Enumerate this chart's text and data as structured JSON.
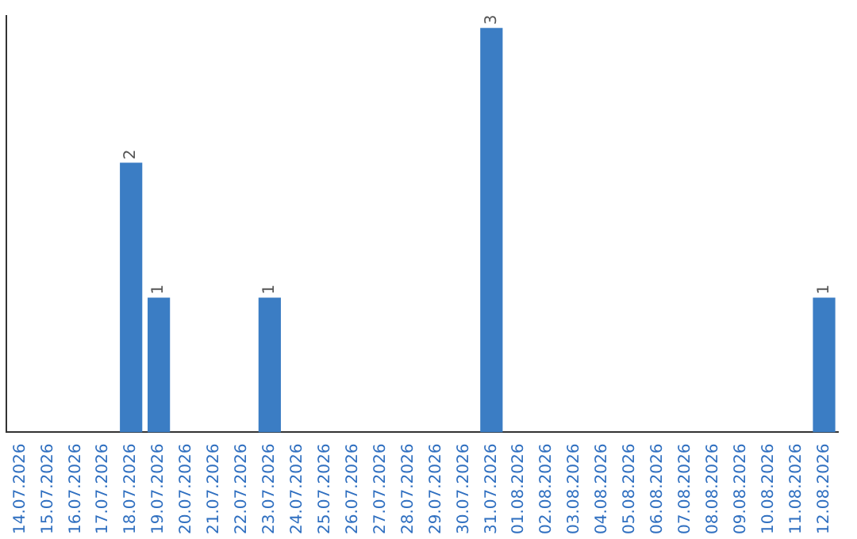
{
  "chart_data": {
    "type": "bar",
    "color": "#3b7dc4",
    "categories": [
      "14.07.2026",
      "15.07.2026",
      "16.07.2026",
      "17.07.2026",
      "18.07.2026",
      "19.07.2026",
      "20.07.2026",
      "21.07.2026",
      "22.07.2026",
      "23.07.2026",
      "24.07.2026",
      "25.07.2026",
      "26.07.2026",
      "27.07.2026",
      "28.07.2026",
      "29.07.2026",
      "30.07.2026",
      "31.07.2026",
      "01.08.2026",
      "02.08.2026",
      "03.08.2026",
      "04.08.2026",
      "05.08.2026",
      "06.08.2026",
      "07.08.2026",
      "08.08.2026",
      "09.08.2026",
      "10.08.2026",
      "11.08.2026",
      "12.08.2026"
    ],
    "values": [
      0,
      0,
      0,
      0,
      2,
      1,
      0,
      0,
      0,
      1,
      0,
      0,
      0,
      0,
      0,
      0,
      0,
      3,
      0,
      0,
      0,
      0,
      0,
      0,
      0,
      0,
      0,
      0,
      0,
      1
    ],
    "value_labels": [
      null,
      null,
      null,
      null,
      "2",
      "1",
      null,
      null,
      null,
      "1",
      null,
      null,
      null,
      null,
      null,
      null,
      null,
      "3",
      null,
      null,
      null,
      null,
      null,
      null,
      null,
      null,
      null,
      null,
      null,
      "1"
    ],
    "grid": false,
    "legend": false
  }
}
